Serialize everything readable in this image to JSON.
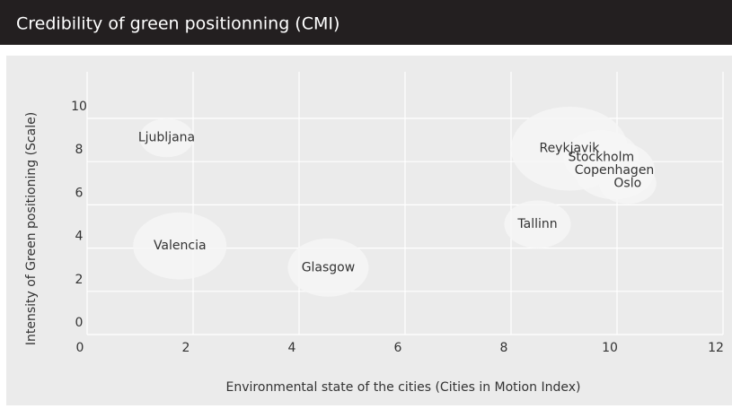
{
  "chart_data": {
    "type": "bubble",
    "title": "Credibility of green positionning (CMI)",
    "x_label": "Environmental state of the cities (Cities in Motion Index)",
    "y_label": "Intensity of Green positioning (Scale)",
    "xlim": [
      0,
      12
    ],
    "xticks": [
      0,
      2,
      4,
      6,
      8,
      10,
      12
    ],
    "ylim": [
      0,
      10
    ],
    "yticks": [
      0,
      2,
      4,
      6,
      8,
      10
    ],
    "grid": true,
    "color": "#f6f6f6",
    "points": [
      {
        "label": "Ljubljana",
        "x": 1.5,
        "y": 9.1,
        "size": 30
      },
      {
        "label": "Valencia",
        "x": 1.75,
        "y": 4.1,
        "size": 52
      },
      {
        "label": "Glasgow",
        "x": 4.55,
        "y": 3.1,
        "size": 45
      },
      {
        "label": "Tallinn",
        "x": 8.5,
        "y": 5.1,
        "size": 37
      },
      {
        "label": "Reykjavik",
        "x": 9.1,
        "y": 8.6,
        "size": 65
      },
      {
        "label": "Stockholm",
        "x": 9.7,
        "y": 8.2,
        "size": 42
      },
      {
        "label": "Copenhagen",
        "x": 9.95,
        "y": 7.6,
        "size": 45
      },
      {
        "label": "Oslo",
        "x": 10.2,
        "y": 7.0,
        "size": 32
      }
    ]
  }
}
